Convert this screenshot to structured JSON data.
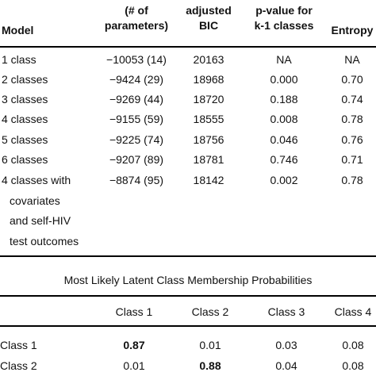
{
  "fit_table": {
    "headers": {
      "model": "Model",
      "ll_line1": "(# of",
      "ll_line2": "parameters)",
      "bic_line1": "adjusted",
      "bic_line2": "BIC",
      "p_line1": "p-value for",
      "p_line2": "k-1 classes",
      "entropy": "Entropy"
    },
    "rows": [
      {
        "model": "1 class",
        "ll": "−10053 (14)",
        "bic": "20163",
        "p": "NA",
        "entropy": "NA"
      },
      {
        "model": "2 classes",
        "ll": "−9424 (29)",
        "bic": "18968",
        "p": "0.000",
        "entropy": "0.70"
      },
      {
        "model": "3 classes",
        "ll": "−9269 (44)",
        "bic": "18720",
        "p": "0.188",
        "entropy": "0.74"
      },
      {
        "model": "4 classes",
        "ll": "−9155 (59)",
        "bic": "18555",
        "p": "0.008",
        "entropy": "0.78"
      },
      {
        "model": "5 classes",
        "ll": "−9225 (74)",
        "bic": "18756",
        "p": "0.046",
        "entropy": "0.76"
      },
      {
        "model": "6 classes",
        "ll": "−9207 (89)",
        "bic": "18781",
        "p": "0.746",
        "entropy": "0.71"
      },
      {
        "model": "4 classes with",
        "ll": "−8874 (95)",
        "bic": "18142",
        "p": "0.002",
        "entropy": "0.78"
      }
    ],
    "last_row_continuation": [
      "covariates",
      "and self-HIV",
      "test outcomes"
    ]
  },
  "membership_table": {
    "title": "Most Likely Latent Class Membership Probabilities",
    "headers": [
      "Class 1",
      "Class 2",
      "Class 3",
      "Class 4"
    ],
    "rows": [
      {
        "label": "Class 1",
        "values": [
          "0.87",
          "0.01",
          "0.03",
          "0.08"
        ],
        "bold_index": 0
      },
      {
        "label": "Class 2",
        "values": [
          "0.01",
          "0.88",
          "0.04",
          "0.08"
        ],
        "bold_index": 1
      }
    ]
  }
}
